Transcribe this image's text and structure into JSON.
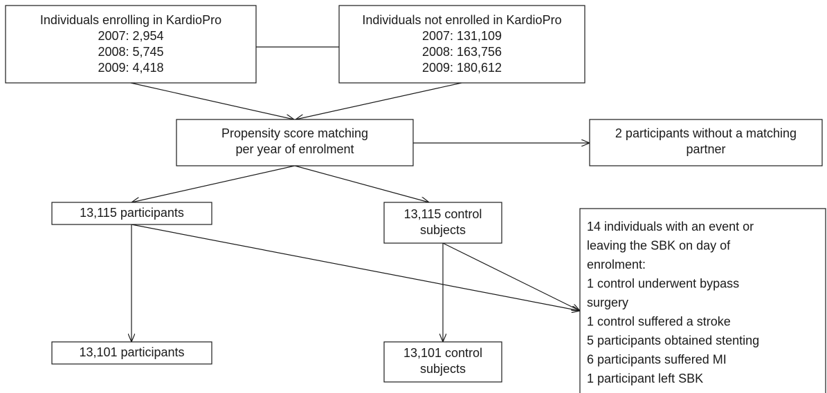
{
  "nodes": [
    {
      "lines": [
        "Individuals enrolling in KardioPro",
        "2007: 2,954",
        "2008: 5,745",
        "2009: 4,418"
      ]
    },
    {
      "lines": [
        "Individuals not enrolled in KardioPro",
        "2007: 131,109",
        "2008: 163,756",
        "2009: 180,612"
      ]
    },
    {
      "lines": [
        "Propensity score matching",
        "per year of enrolment"
      ]
    },
    {
      "lines": [
        "2 participants without a matching",
        "partner"
      ]
    },
    {
      "lines": [
        "13,115 participants"
      ]
    },
    {
      "lines": [
        "13,115 control",
        "subjects"
      ]
    },
    {
      "lines": [
        "14 individuals with an event or",
        "leaving the SBK on day of",
        "enrolment:",
        "1 control underwent bypass",
        "surgery",
        "1 control suffered a stroke",
        "5 participants obtained stenting",
        "6 participants suffered MI",
        "1 participant left SBK"
      ]
    },
    {
      "lines": [
        "13,101 participants"
      ]
    },
    {
      "lines": [
        "13,101 control",
        "subjects"
      ]
    }
  ]
}
